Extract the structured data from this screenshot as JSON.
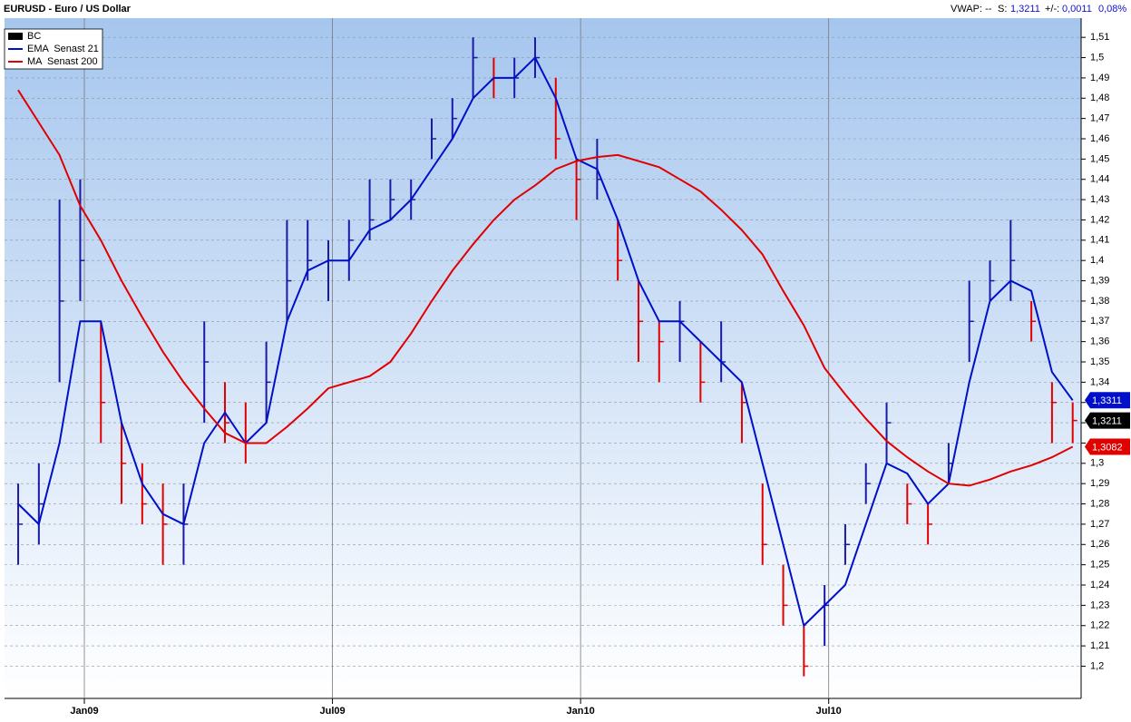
{
  "chart_data": {
    "type": "ohlc",
    "title": "EURUSD - Euro / US Dollar",
    "header": {
      "vwap": "VWAP: --",
      "s_label": "S:",
      "s_value": "1,3211",
      "change_label": "+/-:",
      "change": "0,0011",
      "change_pct": "0,08%"
    },
    "x": [
      -1.6,
      -1.1,
      -0.6,
      -0.1,
      0.4,
      0.9,
      1.4,
      1.9,
      2.4,
      2.9,
      3.4,
      3.9,
      4.4,
      4.9,
      5.4,
      5.9,
      6.4,
      6.9,
      7.4,
      7.9,
      8.4,
      8.9,
      9.4,
      9.9,
      10.4,
      10.9,
      11.4,
      11.9,
      12.4,
      12.9,
      13.4,
      13.9,
      14.4,
      14.9,
      15.4,
      15.9,
      16.4,
      16.9,
      17.4,
      17.9,
      18.4,
      18.9,
      19.4,
      19.9,
      20.4,
      20.9,
      21.4,
      21.9,
      22.4,
      22.9,
      23.4,
      23.9
    ],
    "xlim": [
      -1.93,
      24.06
    ],
    "xticks": [
      {
        "value": 0,
        "label": "Jan09"
      },
      {
        "value": 6,
        "label": "Jul09"
      },
      {
        "value": 12,
        "label": "Jan10"
      },
      {
        "value": 18,
        "label": "Jul10"
      }
    ],
    "ylim": [
      1.185,
      1.515
    ],
    "yticks": [
      {
        "value": 1.2,
        "label": "1,2"
      },
      {
        "value": 1.21,
        "label": "1,21"
      },
      {
        "value": 1.22,
        "label": "1,22"
      },
      {
        "value": 1.23,
        "label": "1,23"
      },
      {
        "value": 1.24,
        "label": "1,24"
      },
      {
        "value": 1.25,
        "label": "1,25"
      },
      {
        "value": 1.26,
        "label": "1,26"
      },
      {
        "value": 1.27,
        "label": "1,27"
      },
      {
        "value": 1.28,
        "label": "1,28"
      },
      {
        "value": 1.29,
        "label": "1,29"
      },
      {
        "value": 1.3,
        "label": "1,3"
      },
      {
        "value": 1.31,
        "label": "1,31"
      },
      {
        "value": 1.32,
        "label": "1,32"
      },
      {
        "value": 1.33,
        "label": "1,33"
      },
      {
        "value": 1.34,
        "label": "1,34"
      },
      {
        "value": 1.35,
        "label": "1,35"
      },
      {
        "value": 1.36,
        "label": "1,36"
      },
      {
        "value": 1.37,
        "label": "1,37"
      },
      {
        "value": 1.38,
        "label": "1,38"
      },
      {
        "value": 1.39,
        "label": "1,39"
      },
      {
        "value": 1.4,
        "label": "1,4"
      },
      {
        "value": 1.41,
        "label": "1,41"
      },
      {
        "value": 1.42,
        "label": "1,42"
      },
      {
        "value": 1.43,
        "label": "1,43"
      },
      {
        "value": 1.44,
        "label": "1,44"
      },
      {
        "value": 1.45,
        "label": "1,45"
      },
      {
        "value": 1.46,
        "label": "1,46"
      },
      {
        "value": 1.47,
        "label": "1,47"
      },
      {
        "value": 1.48,
        "label": "1,48"
      },
      {
        "value": 1.49,
        "label": "1,49"
      },
      {
        "value": 1.5,
        "label": "1,5"
      },
      {
        "value": 1.51,
        "label": "1,51"
      }
    ],
    "grid": true,
    "legend": "upper left",
    "bars": {
      "name": "BC",
      "color": "#000000",
      "up_color": "#1a1aa8",
      "down_color": "#e00000",
      "last_label": "1,3211",
      "high": [
        1.29,
        1.3,
        1.43,
        1.44,
        1.37,
        1.32,
        1.3,
        1.29,
        1.29,
        1.37,
        1.34,
        1.33,
        1.36,
        1.42,
        1.42,
        1.41,
        1.42,
        1.44,
        1.44,
        1.44,
        1.47,
        1.48,
        1.51,
        1.5,
        1.5,
        1.51,
        1.49,
        1.45,
        1.46,
        1.42,
        1.39,
        1.37,
        1.38,
        1.36,
        1.37,
        1.34,
        1.29,
        1.25,
        1.22,
        1.24,
        1.27,
        1.3,
        1.33,
        1.29,
        1.28,
        1.31,
        1.39,
        1.4,
        1.42,
        1.38,
        1.34,
        1.33
      ],
      "low": [
        1.25,
        1.26,
        1.34,
        1.38,
        1.31,
        1.28,
        1.27,
        1.25,
        1.25,
        1.32,
        1.31,
        1.3,
        1.32,
        1.37,
        1.39,
        1.38,
        1.39,
        1.41,
        1.42,
        1.42,
        1.45,
        1.46,
        1.48,
        1.48,
        1.48,
        1.49,
        1.45,
        1.42,
        1.43,
        1.39,
        1.35,
        1.34,
        1.35,
        1.33,
        1.34,
        1.31,
        1.25,
        1.22,
        1.195,
        1.21,
        1.25,
        1.28,
        1.3,
        1.27,
        1.26,
        1.29,
        1.35,
        1.38,
        1.38,
        1.36,
        1.31,
        1.31
      ],
      "close": [
        1.27,
        1.28,
        1.38,
        1.4,
        1.33,
        1.3,
        1.28,
        1.27,
        1.27,
        1.35,
        1.32,
        1.31,
        1.34,
        1.39,
        1.4,
        1.4,
        1.41,
        1.42,
        1.43,
        1.43,
        1.46,
        1.47,
        1.5,
        1.49,
        1.49,
        1.5,
        1.46,
        1.44,
        1.44,
        1.4,
        1.37,
        1.36,
        1.37,
        1.34,
        1.35,
        1.33,
        1.26,
        1.23,
        1.2,
        1.23,
        1.26,
        1.29,
        1.32,
        1.28,
        1.27,
        1.3,
        1.37,
        1.39,
        1.4,
        1.37,
        1.33,
        1.3211
      ]
    },
    "series": [
      {
        "name": "EMA  Senast 21",
        "color": "#0010c8",
        "last_label": "1,3311",
        "values": [
          1.28,
          1.27,
          1.31,
          1.37,
          1.37,
          1.32,
          1.29,
          1.275,
          1.27,
          1.31,
          1.325,
          1.31,
          1.32,
          1.37,
          1.395,
          1.4,
          1.4,
          1.415,
          1.42,
          1.43,
          1.445,
          1.46,
          1.48,
          1.49,
          1.49,
          1.5,
          1.48,
          1.45,
          1.445,
          1.42,
          1.39,
          1.37,
          1.37,
          1.36,
          1.35,
          1.34,
          1.3,
          1.26,
          1.22,
          1.23,
          1.24,
          1.27,
          1.3,
          1.295,
          1.28,
          1.29,
          1.34,
          1.38,
          1.39,
          1.385,
          1.345,
          1.3311
        ]
      },
      {
        "name": "MA  Senast 200",
        "color": "#e00000",
        "last_label": "1,3082",
        "values": [
          1.484,
          1.468,
          1.452,
          1.427,
          1.41,
          1.39,
          1.372,
          1.355,
          1.34,
          1.327,
          1.315,
          1.31,
          1.31,
          1.318,
          1.327,
          1.337,
          1.34,
          1.343,
          1.35,
          1.364,
          1.38,
          1.395,
          1.408,
          1.42,
          1.43,
          1.437,
          1.445,
          1.449,
          1.451,
          1.452,
          1.449,
          1.446,
          1.44,
          1.434,
          1.425,
          1.415,
          1.403,
          1.385,
          1.368,
          1.347,
          1.334,
          1.322,
          1.311,
          1.303,
          1.296,
          1.29,
          1.289,
          1.292,
          1.296,
          1.299,
          1.303,
          1.3082
        ]
      }
    ]
  }
}
